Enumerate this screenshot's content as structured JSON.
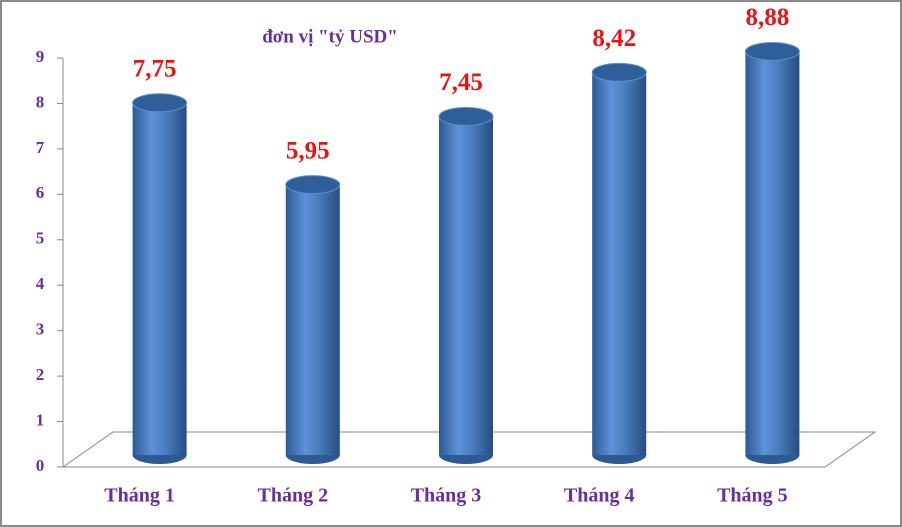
{
  "chart_data": {
    "type": "bar",
    "title": "đơn vị \"tỷ USD\"",
    "categories": [
      "Tháng 1",
      "Tháng 2",
      "Tháng 3",
      "Tháng 4",
      "Tháng 5"
    ],
    "values": [
      7.75,
      5.95,
      7.45,
      8.42,
      8.88
    ],
    "value_labels": [
      "7,75",
      "5,95",
      "7,45",
      "8,42",
      "8,88"
    ],
    "color": "#4a7ebf",
    "ylim": [
      0,
      9
    ],
    "yticks": [
      0,
      1,
      2,
      3,
      4,
      5,
      6,
      7,
      8,
      9
    ],
    "grid": false
  }
}
